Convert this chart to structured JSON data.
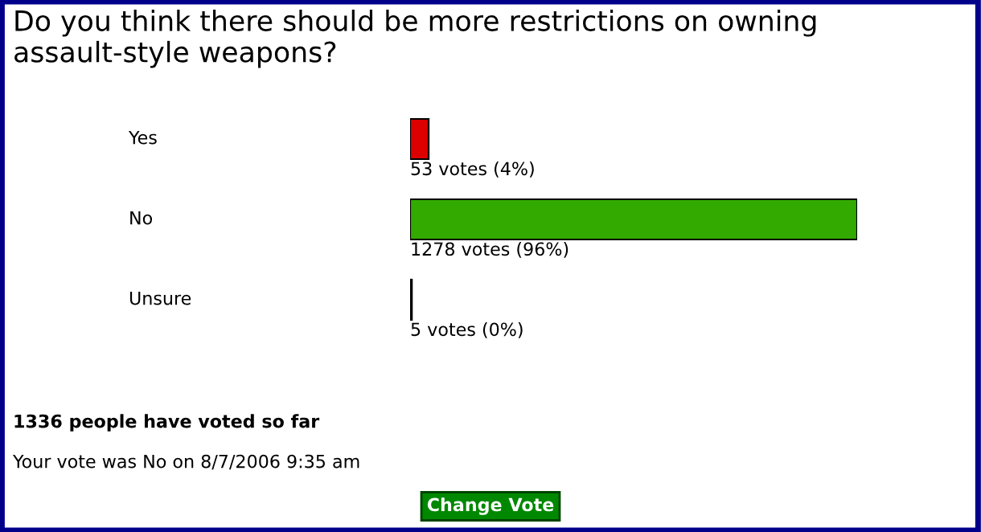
{
  "chart_data": {
    "type": "bar",
    "orientation": "horizontal",
    "title": "Do you think there should be more restrictions on owning assault-style weapons?",
    "categories": [
      "Yes",
      "No",
      "Unsure"
    ],
    "values": [
      53,
      1278,
      5
    ],
    "colors": [
      "#dd0000",
      "#33aa00",
      "#f0b020"
    ],
    "value_labels": [
      "53 votes (4%)",
      "1278 votes (96%)",
      "5 votes (0%)"
    ],
    "annotations": [
      "1336 people have voted so far",
      "Your vote was No on 8/7/2006 9:35 am",
      "Change Vote"
    ]
  }
}
